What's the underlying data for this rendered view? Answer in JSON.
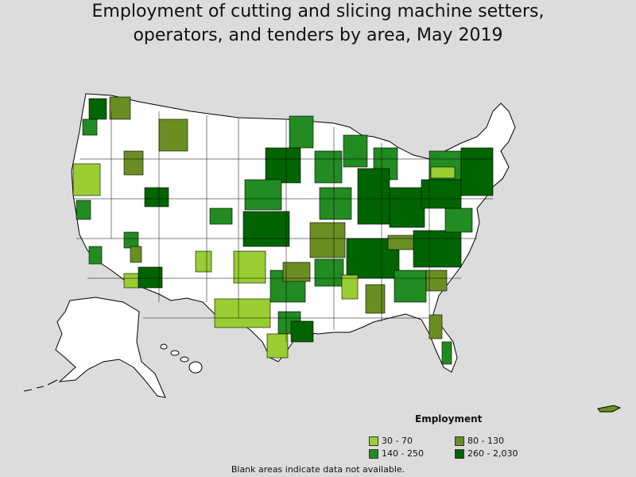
{
  "title_line1": "Employment of cutting and slicing machine setters,",
  "title_line2": "operators, and tenders by area, May 2019",
  "legend": {
    "title": "Employment",
    "items": [
      {
        "label": "30 - 70",
        "color": "#9acd32"
      },
      {
        "label": "80 - 130",
        "color": "#6b8e23"
      },
      {
        "label": "140 - 250",
        "color": "#228b22"
      },
      {
        "label": "260 - 2,030",
        "color": "#006400"
      }
    ]
  },
  "note": "Blank areas indicate data not available.",
  "colors": {
    "background": "#dcdcdc",
    "no_data": "#ffffff",
    "border": "#000000"
  }
}
